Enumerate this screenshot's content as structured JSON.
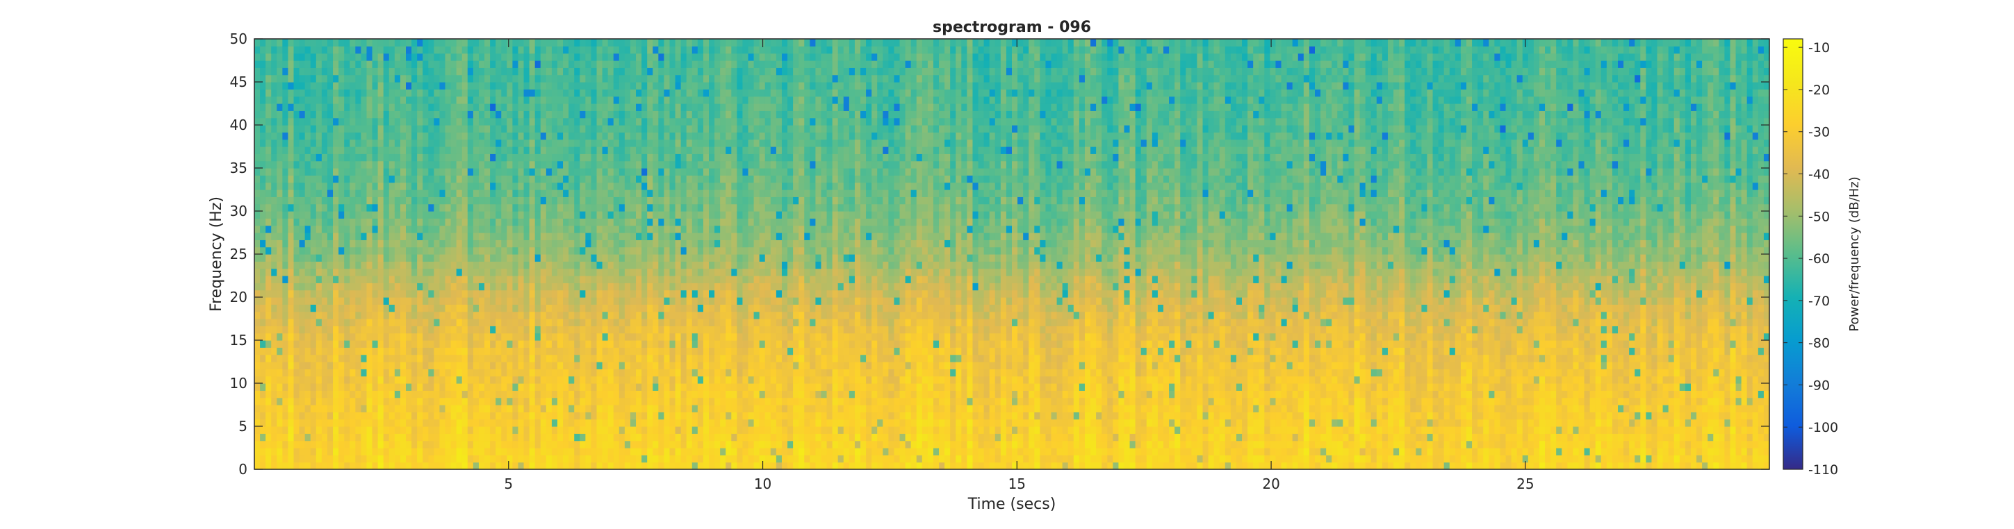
{
  "chart_data": {
    "type": "heatmap",
    "title": "spectrogram - 096",
    "xlabel": "Time (secs)",
    "ylabel": "Frequency (Hz)",
    "xlim": [
      0,
      29.8
    ],
    "ylim": [
      0,
      50
    ],
    "x_ticks": [
      5,
      10,
      15,
      20,
      25
    ],
    "y_ticks": [
      0,
      5,
      10,
      15,
      20,
      25,
      30,
      35,
      40,
      45,
      50
    ],
    "colorbar": {
      "label": "Power/frequency (dB/Hz)",
      "colormap": "parula",
      "clim": [
        -110,
        -8
      ],
      "ticks": [
        -10,
        -20,
        -30,
        -40,
        -50,
        -60,
        -70,
        -80,
        -90,
        -100,
        -110
      ]
    },
    "approximate_power_profile_db": [
      {
        "frequency_hz": 0,
        "power_db_per_hz": -24
      },
      {
        "frequency_hz": 5,
        "power_db_per_hz": -27
      },
      {
        "frequency_hz": 10,
        "power_db_per_hz": -30
      },
      {
        "frequency_hz": 15,
        "power_db_per_hz": -33
      },
      {
        "frequency_hz": 20,
        "power_db_per_hz": -40
      },
      {
        "frequency_hz": 25,
        "power_db_per_hz": -50
      },
      {
        "frequency_hz": 30,
        "power_db_per_hz": -55
      },
      {
        "frequency_hz": 35,
        "power_db_per_hz": -58
      },
      {
        "frequency_hz": 40,
        "power_db_per_hz": -60
      },
      {
        "frequency_hz": 45,
        "power_db_per_hz": -61
      },
      {
        "frequency_hz": 50,
        "power_db_per_hz": -62
      }
    ]
  }
}
